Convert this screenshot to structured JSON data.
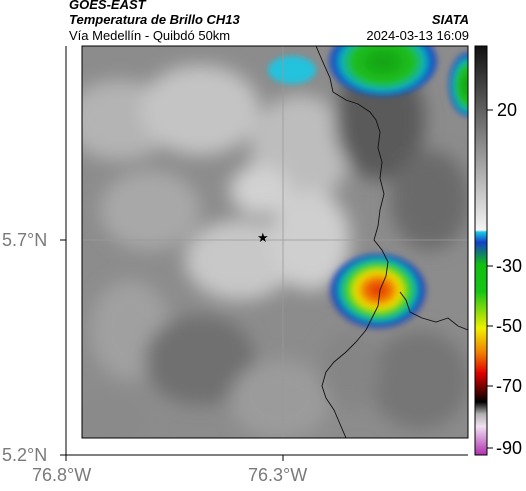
{
  "header": {
    "satellite": "GOES-EAST",
    "product": "Temperatura de Brillo CH13",
    "region": "Vía Medellín - Quibdó 50km",
    "agency": "SIATA",
    "datetime": "2024-03-13 16:09"
  },
  "map": {
    "lon_ticks": [
      "76.8°W",
      "76.3°W"
    ],
    "lat_ticks": [
      "5.7°N",
      "5.2°N"
    ],
    "marker_icon": "star-icon",
    "marker_glyph": "★"
  },
  "colorbar": {
    "tick_labels": [
      "20",
      "-30",
      "-50",
      "-70",
      "-90"
    ],
    "colors": {
      "gray_top": "#1a1a1a",
      "gray_bottom": "#f2f2f2",
      "cyan": "#19c8e6",
      "blue": "#1040c8",
      "green": "#16c416",
      "yellow": "#f0f000",
      "red": "#e00000",
      "black": "#000000",
      "magenta": "#c040c0"
    }
  }
}
